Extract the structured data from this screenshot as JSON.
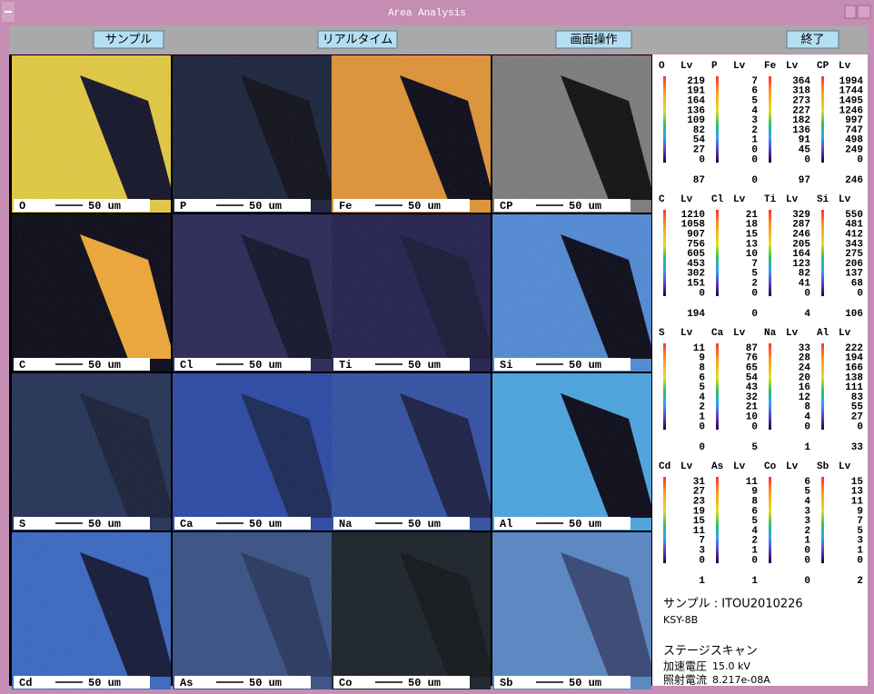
{
  "window": {
    "title": "Area Analysis"
  },
  "toolbar": {
    "buttons": [
      "サンプル",
      "リアルタイム",
      "画面操作",
      "終了"
    ]
  },
  "maps": {
    "scale_label": "50 um",
    "tiles": [
      "O",
      "P",
      "Fe",
      "CP",
      "C",
      "Cl",
      "Ti",
      "Si",
      "S",
      "Ca",
      "Na",
      "Al",
      "Cd",
      "As",
      "Co",
      "Sb"
    ]
  },
  "legend": {
    "unit": "Lv",
    "groups": [
      {
        "columns": [
          {
            "element": "O",
            "levels": [
              219,
              191,
              164,
              136,
              109,
              82,
              54,
              27,
              0
            ],
            "bottom": 87
          },
          {
            "element": "P",
            "levels": [
              7,
              6,
              5,
              4,
              3,
              2,
              1,
              0,
              0
            ],
            "bottom": 0
          },
          {
            "element": "Fe",
            "levels": [
              364,
              318,
              273,
              227,
              182,
              136,
              91,
              45,
              0
            ],
            "bottom": 97
          },
          {
            "element": "CP",
            "levels": [
              1994,
              1744,
              1495,
              1246,
              997,
              747,
              498,
              249,
              0
            ],
            "bottom": 246
          }
        ]
      },
      {
        "columns": [
          {
            "element": "C",
            "levels": [
              1210,
              1058,
              907,
              756,
              605,
              453,
              302,
              151,
              0
            ],
            "bottom": 194
          },
          {
            "element": "Cl",
            "levels": [
              21,
              18,
              15,
              13,
              10,
              7,
              5,
              2,
              0
            ],
            "bottom": 0
          },
          {
            "element": "Ti",
            "levels": [
              329,
              287,
              246,
              205,
              164,
              123,
              82,
              41,
              0
            ],
            "bottom": 4
          },
          {
            "element": "Si",
            "levels": [
              550,
              481,
              412,
              343,
              275,
              206,
              137,
              68,
              0
            ],
            "bottom": 106
          }
        ]
      },
      {
        "columns": [
          {
            "element": "S",
            "levels": [
              11,
              9,
              8,
              6,
              5,
              4,
              2,
              1,
              0
            ],
            "bottom": 0
          },
          {
            "element": "Ca",
            "levels": [
              87,
              76,
              65,
              54,
              43,
              32,
              21,
              10,
              0
            ],
            "bottom": 5
          },
          {
            "element": "Na",
            "levels": [
              33,
              28,
              24,
              20,
              16,
              12,
              8,
              4,
              0
            ],
            "bottom": 1
          },
          {
            "element": "Al",
            "levels": [
              222,
              194,
              166,
              138,
              111,
              83,
              55,
              27,
              0
            ],
            "bottom": 33
          }
        ]
      },
      {
        "columns": [
          {
            "element": "Cd",
            "levels": [
              31,
              27,
              23,
              19,
              15,
              11,
              7,
              3,
              0
            ],
            "bottom": 1
          },
          {
            "element": "As",
            "levels": [
              11,
              9,
              8,
              6,
              5,
              4,
              2,
              1,
              0
            ],
            "bottom": 1
          },
          {
            "element": "Co",
            "levels": [
              6,
              5,
              4,
              3,
              3,
              2,
              1,
              0,
              0
            ],
            "bottom": 0
          },
          {
            "element": "Sb",
            "levels": [
              15,
              13,
              11,
              9,
              7,
              5,
              3,
              1,
              0
            ],
            "bottom": 2
          }
        ]
      }
    ]
  },
  "info": {
    "sample": "サンプル : ITOU2010226",
    "sample_id": "KSY-8B",
    "mode": "ステージスキャン",
    "rows": [
      [
        "加速電圧",
        "15.0 kV"
      ],
      [
        "照射電流",
        "8.217e-08A"
      ]
    ]
  }
}
